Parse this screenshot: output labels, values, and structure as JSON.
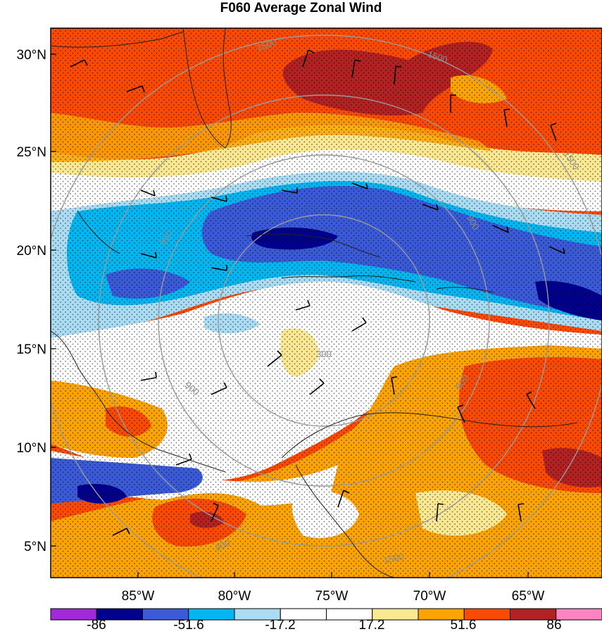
{
  "title": "F060 Average Zonal Wind",
  "latitude_labels": [
    "30°N",
    "25°N",
    "20°N",
    "15°N",
    "10°N",
    "5°N"
  ],
  "longitude_labels": [
    "85°W",
    "80°W",
    "75°W",
    "70°W",
    "65°W"
  ],
  "range_ring_labels": [
    "300",
    "900",
    "900",
    "900",
    "1500",
    "1500",
    "1500",
    "900",
    "900",
    "1500"
  ],
  "colorbar": {
    "labels": [
      "-86",
      "-51.6",
      "-17.2",
      "17.2",
      "51.6",
      "86"
    ],
    "colors": [
      "#a02ad8",
      "#00008c",
      "#3a5ad8",
      "#00b6f0",
      "#aadcf4",
      "#ffffff",
      "#ffffff",
      "#fbe892",
      "#fda402",
      "#fc4a02",
      "#b22222",
      "#ff85c2"
    ]
  },
  "field_colors": {
    "strong_easterly": "#00008c",
    "easterly": "#3a5ad8",
    "moderate_easterly": "#00b6f0",
    "weak_easterly": "#aadcf4",
    "calm": "#ffffff",
    "weak_westerly": "#fbe892",
    "moderate_westerly": "#fda402",
    "westerly": "#fc4a02",
    "strong_westerly": "#b22222"
  }
}
